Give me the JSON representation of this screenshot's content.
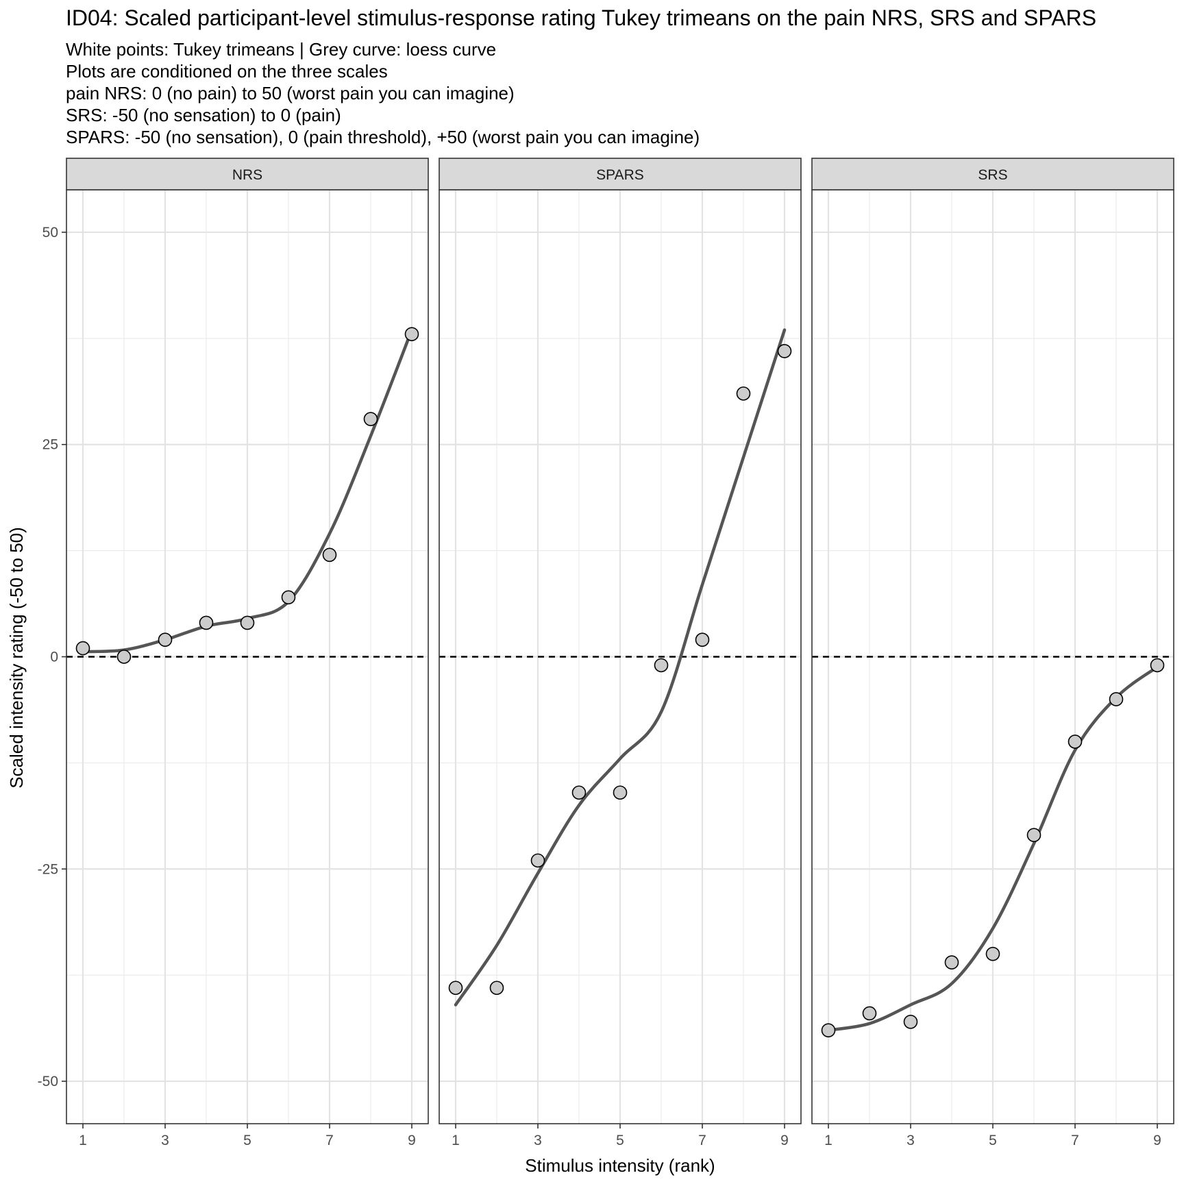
{
  "chart_data": {
    "type": "scatter",
    "title": "ID04: Scaled participant-level stimulus-response rating Tukey trimeans on the pain NRS, SRS and SPARS",
    "subtitle_lines": [
      "White points: Tukey trimeans | Grey curve: loess curve",
      "Plots are conditioned on the three scales",
      "pain NRS: 0 (no pain) to 50 (worst pain you can imagine)",
      "SRS: -50 (no sensation) to 0 (pain)",
      "SPARS: -50 (no sensation), 0 (pain threshold), +50 (worst pain you can imagine)"
    ],
    "xlabel": "Stimulus intensity (rank)",
    "ylabel": "Scaled intensity rating (-50 to 50)",
    "xlim": [
      0.6,
      9.4
    ],
    "ylim": [
      -55,
      55
    ],
    "x_ticks": [
      1,
      3,
      5,
      7,
      9
    ],
    "y_ticks": [
      -50,
      -25,
      0,
      25,
      50
    ],
    "reference_line": 0,
    "point_color": "#cccccc",
    "curve_color": "#555555",
    "grid": true,
    "panels": [
      {
        "name": "NRS",
        "x": [
          1,
          2,
          3,
          4,
          5,
          6,
          7,
          8,
          9
        ],
        "points": [
          1,
          0,
          2,
          4,
          4,
          7,
          12,
          28,
          38
        ],
        "curve": [
          0.6,
          0.8,
          2.0,
          3.6,
          4.5,
          6.5,
          14.5,
          26,
          38.5
        ]
      },
      {
        "name": "SPARS",
        "x": [
          1,
          2,
          3,
          4,
          5,
          6,
          7,
          8,
          9
        ],
        "points": [
          -39,
          -39,
          -24,
          -16,
          -16,
          -1,
          2,
          31,
          36
        ],
        "curve": [
          -41,
          -34,
          -25.5,
          -17.5,
          -12,
          -6.5,
          8.5,
          23.5,
          38.5
        ]
      },
      {
        "name": "SRS",
        "x": [
          1,
          2,
          3,
          4,
          5,
          6,
          7,
          8,
          9
        ],
        "points": [
          -44,
          -42,
          -43,
          -36,
          -35,
          -21,
          -10,
          -5,
          -1
        ],
        "curve": [
          -44,
          -43.2,
          -41,
          -38.5,
          -32,
          -22,
          -11,
          -4.8,
          -1.2
        ]
      }
    ]
  }
}
